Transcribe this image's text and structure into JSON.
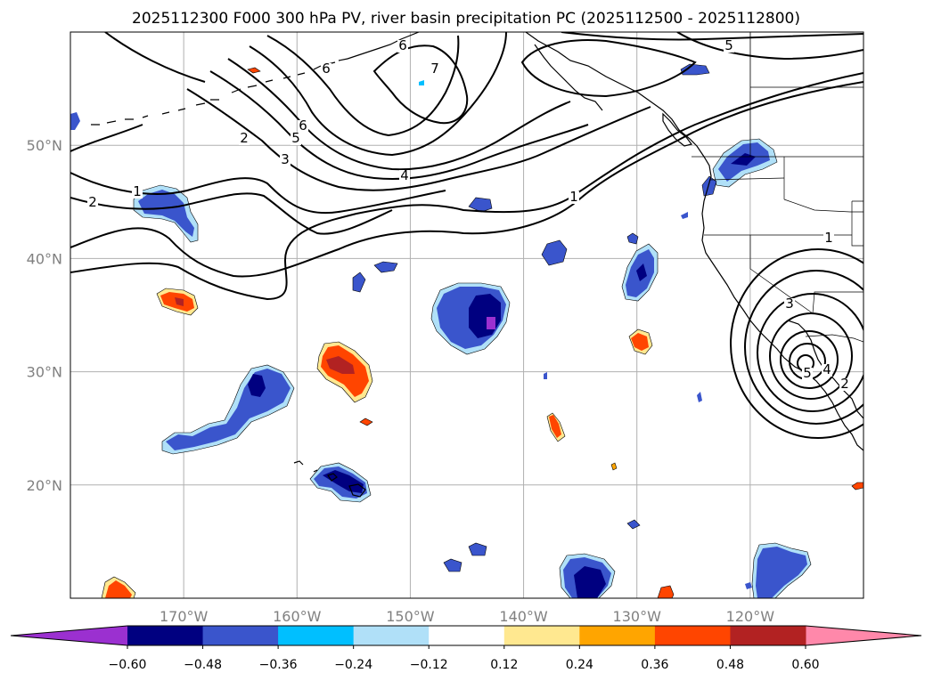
{
  "chart_data": {
    "type": "map",
    "title": "2025112300 F000 300 hPa PV, river basin precipitation PC (2025112500 - 2025112800)",
    "projection": "PlateCarree",
    "extent": {
      "lon_min": -180,
      "lon_max": -110,
      "lat_min": 10,
      "lat_max": 60
    },
    "lon_ticks": [
      -170,
      -160,
      -150,
      -140,
      -130,
      -120
    ],
    "lon_tick_labels": [
      "170°W",
      "160°W",
      "150°W",
      "140°W",
      "130°W",
      "120°W"
    ],
    "lat_ticks": [
      20,
      30,
      40,
      50
    ],
    "lat_tick_labels": [
      "20°N",
      "30°N",
      "40°N",
      "50°N"
    ],
    "grid": true,
    "colorbar": {
      "orientation": "horizontal",
      "extend": "both",
      "boundaries": [
        -0.6,
        -0.48,
        -0.36,
        -0.24,
        -0.12,
        0.12,
        0.24,
        0.36,
        0.48,
        0.6
      ],
      "tick_labels": [
        "−0.60",
        "−0.48",
        "−0.36",
        "−0.24",
        "−0.12",
        "0.12",
        "0.24",
        "0.36",
        "0.48",
        "0.60"
      ],
      "colors": [
        "#9b30d0",
        "#000080",
        "#3a55cc",
        "#00bfff",
        "#b0e0f8",
        "#ffffff",
        "#ffe890",
        "#ffa500",
        "#ff4500",
        "#b22222",
        "#ff88aa"
      ]
    },
    "pv_contour_labels": [
      "1",
      "2",
      "3",
      "4",
      "5",
      "6",
      "7"
    ],
    "pv_contour_levels": [
      1,
      2,
      3,
      4,
      5,
      6,
      7
    ],
    "colors": {
      "contour": "#000000",
      "grid": "#b0b0b0",
      "coast": "#000000"
    }
  }
}
